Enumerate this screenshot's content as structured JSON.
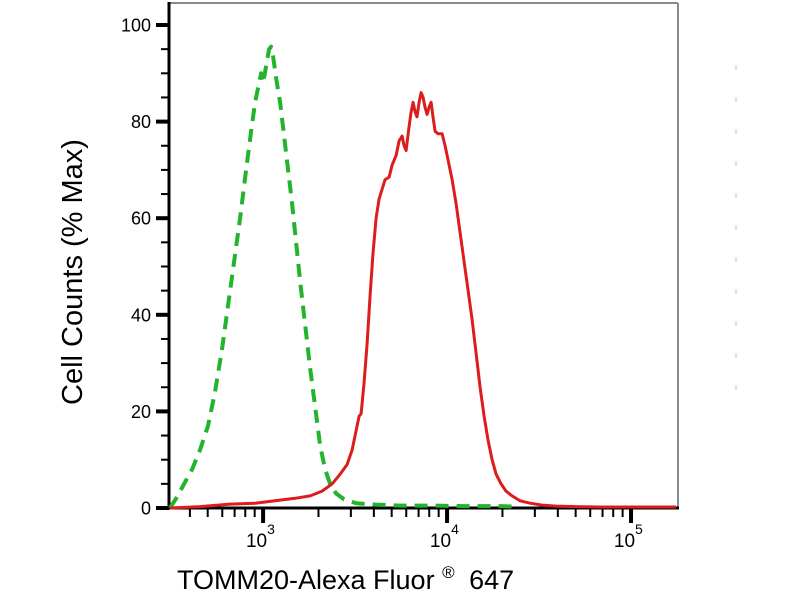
{
  "figure": {
    "xlabel_parts": {
      "main": "TOMM20-Alexa Fluor",
      "sup": "®",
      "suffix": "647"
    },
    "colors": {
      "red_series": "#dd1c1c",
      "green_series": "#22b42c",
      "axis": "#000000",
      "frame_gray": "#8a8a8a",
      "text": "#000000",
      "artifact": "#e4e4e4",
      "background": "#ffffff"
    }
  },
  "chart_data": {
    "type": "line",
    "title": "",
    "xlabel": "TOMM20-Alexa Fluor® 647",
    "ylabel": "Cell Counts (% Max)",
    "x_scale": "log",
    "xlim": [
      308,
      180000
    ],
    "ylim": [
      0,
      100
    ],
    "y_major_ticks": [
      0,
      20,
      40,
      60,
      80,
      100
    ],
    "y_minor_step": 5,
    "x_major_ticks": [
      {
        "value": 1000,
        "base": "10",
        "exp": "3"
      },
      {
        "value": 10000,
        "base": "10",
        "exp": "4"
      },
      {
        "value": 100000,
        "base": "10",
        "exp": "5"
      }
    ],
    "grid": false,
    "legend": "none",
    "series": [
      {
        "name": "green-dashed-histogram",
        "style": "dashed",
        "color_key": "green_series",
        "points": [
          [
            312,
            0
          ],
          [
            337,
            2
          ],
          [
            372,
            5
          ],
          [
            411,
            8
          ],
          [
            454,
            12
          ],
          [
            502,
            17
          ],
          [
            548,
            24
          ],
          [
            599,
            33
          ],
          [
            645,
            42
          ],
          [
            696,
            51
          ],
          [
            750,
            60
          ],
          [
            808,
            70
          ],
          [
            861,
            78
          ],
          [
            905,
            84
          ],
          [
            951,
            88
          ],
          [
            975,
            90
          ],
          [
            1000,
            88
          ],
          [
            1038,
            91.5
          ],
          [
            1078,
            95
          ],
          [
            1105,
            95.5
          ],
          [
            1133,
            93.5
          ],
          [
            1177,
            89
          ],
          [
            1237,
            84
          ],
          [
            1301,
            77
          ],
          [
            1367,
            70
          ],
          [
            1438,
            63
          ],
          [
            1511,
            55
          ],
          [
            1589,
            47
          ],
          [
            1692,
            38
          ],
          [
            1800,
            29
          ],
          [
            1917,
            21
          ],
          [
            2041,
            13
          ],
          [
            2173,
            8
          ],
          [
            2313,
            5
          ],
          [
            2493,
            3
          ],
          [
            2755,
            1.8
          ],
          [
            3202,
            1
          ],
          [
            4062,
            0.7
          ],
          [
            5553,
            0.5
          ],
          [
            8084,
            0.5
          ],
          [
            12526,
            0.4
          ],
          [
            19409,
            0.4
          ],
          [
            24000,
            0.3
          ]
        ]
      },
      {
        "name": "red-solid-histogram",
        "style": "solid",
        "color_key": "red_series",
        "points": [
          [
            312,
            0
          ],
          [
            455,
            0.3
          ],
          [
            662,
            0.8
          ],
          [
            905,
            1
          ],
          [
            1162,
            1.5
          ],
          [
            1492,
            2
          ],
          [
            1800,
            2.5
          ],
          [
            2093,
            3.5
          ],
          [
            2371,
            5
          ],
          [
            2621,
            7
          ],
          [
            2861,
            9
          ],
          [
            3046,
            12
          ],
          [
            3202,
            16
          ],
          [
            3325,
            19
          ],
          [
            3409,
            19.5
          ],
          [
            3540,
            26
          ],
          [
            3675,
            34
          ],
          [
            3814,
            44
          ],
          [
            3961,
            53
          ],
          [
            4113,
            60
          ],
          [
            4270,
            64
          ],
          [
            4434,
            66
          ],
          [
            4603,
            68
          ],
          [
            4840,
            68.5
          ],
          [
            5026,
            71
          ],
          [
            5284,
            73
          ],
          [
            5485,
            76
          ],
          [
            5693,
            77
          ],
          [
            5838,
            75
          ],
          [
            5985,
            74
          ],
          [
            6214,
            79
          ],
          [
            6372,
            82
          ],
          [
            6533,
            84
          ],
          [
            6699,
            82
          ],
          [
            6868,
            81
          ],
          [
            7043,
            84
          ],
          [
            7222,
            86
          ],
          [
            7405,
            85
          ],
          [
            7590,
            83
          ],
          [
            7786,
            81.5
          ],
          [
            7983,
            83
          ],
          [
            8184,
            84
          ],
          [
            8391,
            81
          ],
          [
            8604,
            78
          ],
          [
            8933,
            77.5
          ],
          [
            9394,
            77.5
          ],
          [
            9752,
            75
          ],
          [
            10127,
            72
          ],
          [
            10645,
            68
          ],
          [
            11192,
            63
          ],
          [
            11766,
            57
          ],
          [
            12369,
            51
          ],
          [
            13004,
            45
          ],
          [
            13672,
            39
          ],
          [
            14374,
            32
          ],
          [
            15112,
            25
          ],
          [
            15888,
            19
          ],
          [
            16704,
            14
          ],
          [
            17562,
            10
          ],
          [
            18464,
            7
          ],
          [
            19655,
            5
          ],
          [
            20922,
            3.5
          ],
          [
            22560,
            2.5
          ],
          [
            24935,
            1.5
          ],
          [
            28256,
            1
          ],
          [
            32837,
            0.6
          ],
          [
            39113,
            0.4
          ],
          [
            49624,
            0.3
          ],
          [
            67848,
            0.2
          ],
          [
            111919,
            0.2
          ],
          [
            175646,
            0.2
          ]
        ]
      }
    ]
  }
}
